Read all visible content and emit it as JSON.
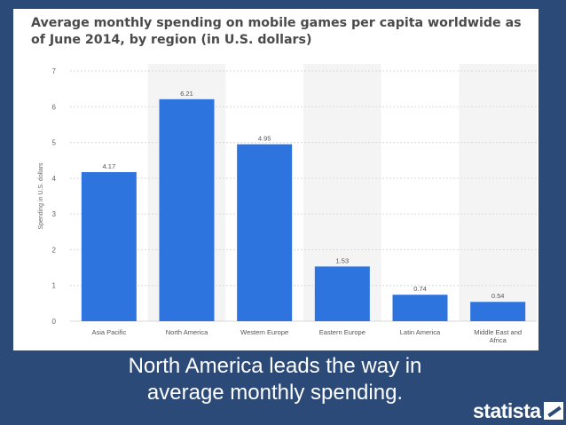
{
  "chart": {
    "title": "Average monthly spending on mobile games per capita worldwide as of June 2014, by region (in U.S. dollars)"
  },
  "caption": {
    "line1": "North America leads the way in",
    "line2": "average monthly spending."
  },
  "brand": {
    "name": "statista",
    "logo_icon": "statista-logo-icon"
  },
  "colors": {
    "bar": "#2e74de",
    "background": "#2c4a78",
    "band": "#f4f4f4"
  },
  "chart_data": {
    "type": "bar",
    "title": "Average monthly spending on mobile games per capita worldwide as of June 2014, by region (in U.S. dollars)",
    "categories": [
      "Asia Pacific",
      "North America",
      "Western Europe",
      "Eastern Europe",
      "Latin America",
      "Middle East and Africa"
    ],
    "category_lines": [
      [
        "Asia Pacific"
      ],
      [
        "North America"
      ],
      [
        "Western Europe"
      ],
      [
        "Eastern Europe"
      ],
      [
        "Latin America"
      ],
      [
        "Middle East and",
        "Africa"
      ]
    ],
    "values": [
      4.17,
      6.21,
      4.95,
      1.53,
      0.74,
      0.54
    ],
    "value_labels": [
      "4.17",
      "6.21",
      "4.95",
      "1.53",
      "0.74",
      "0.54"
    ],
    "xlabel": "",
    "ylabel": "Spending in U.S. dollars",
    "ylim": [
      0,
      7
    ],
    "yticks": [
      "0",
      "1",
      "2",
      "3",
      "4",
      "5",
      "6",
      "7"
    ],
    "grid": true,
    "legend": "none"
  }
}
